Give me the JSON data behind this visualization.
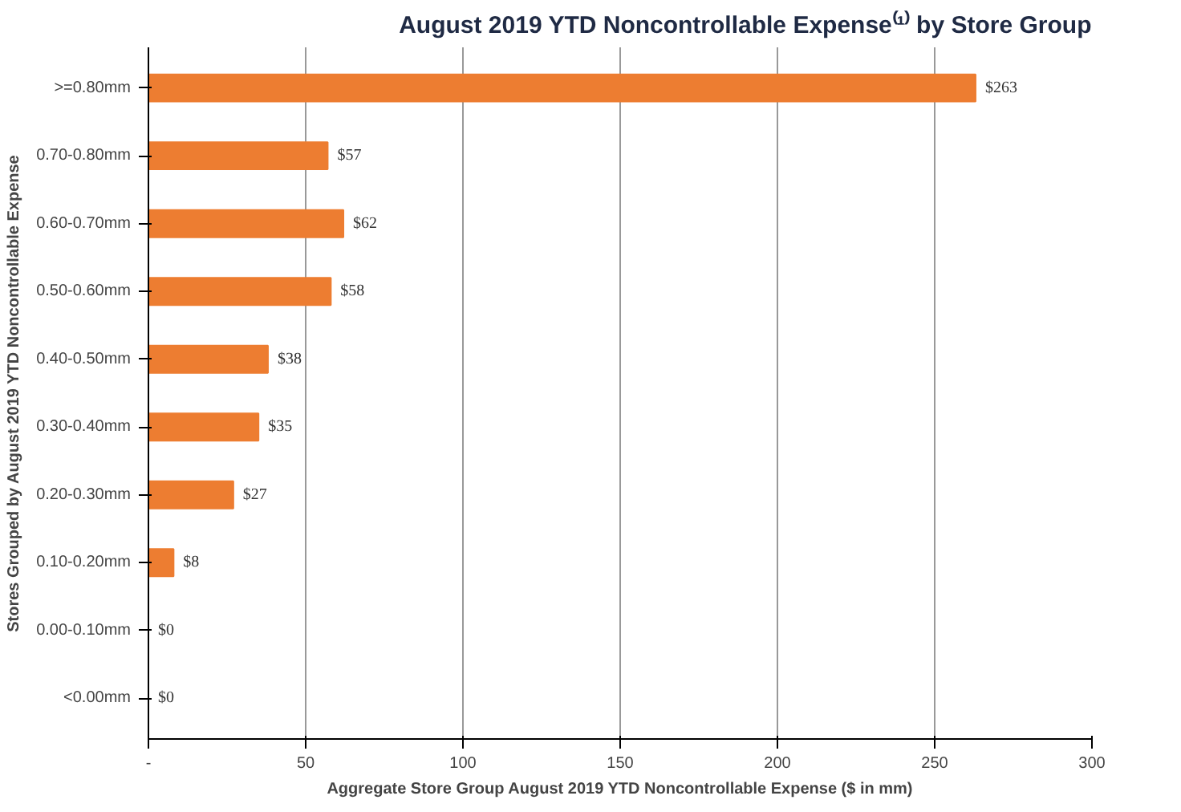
{
  "chart_data": {
    "type": "bar",
    "orientation": "horizontal",
    "title": "August 2019 YTD Noncontrollable Expense⁽¹⁾ by Store Group",
    "xlabel": "Aggregate Store Group August 2019 YTD Noncontrollable Expense ($ in mm)",
    "ylabel": "Stores Grouped by August 2019 YTD Noncontrollable Expense",
    "categories": [
      ">=0.80mm",
      "0.70-0.80mm",
      "0.60-0.70mm",
      "0.50-0.60mm",
      "0.40-0.50mm",
      "0.30-0.40mm",
      "0.20-0.30mm",
      "0.10-0.20mm",
      "0.00-0.10mm",
      "<0.00mm"
    ],
    "values": [
      263,
      57,
      62,
      58,
      38,
      35,
      27,
      8,
      0,
      0
    ],
    "value_labels": [
      "$263",
      "$57",
      "$62",
      "$58",
      "$38",
      "$35",
      "$27",
      "$8",
      "$0",
      "$0"
    ],
    "color": "#ed7d31",
    "xlim": [
      0,
      300
    ],
    "xticks": [
      {
        "value": 0,
        "label": "-"
      },
      50,
      100,
      150,
      200,
      250,
      300
    ],
    "grid": "x"
  }
}
